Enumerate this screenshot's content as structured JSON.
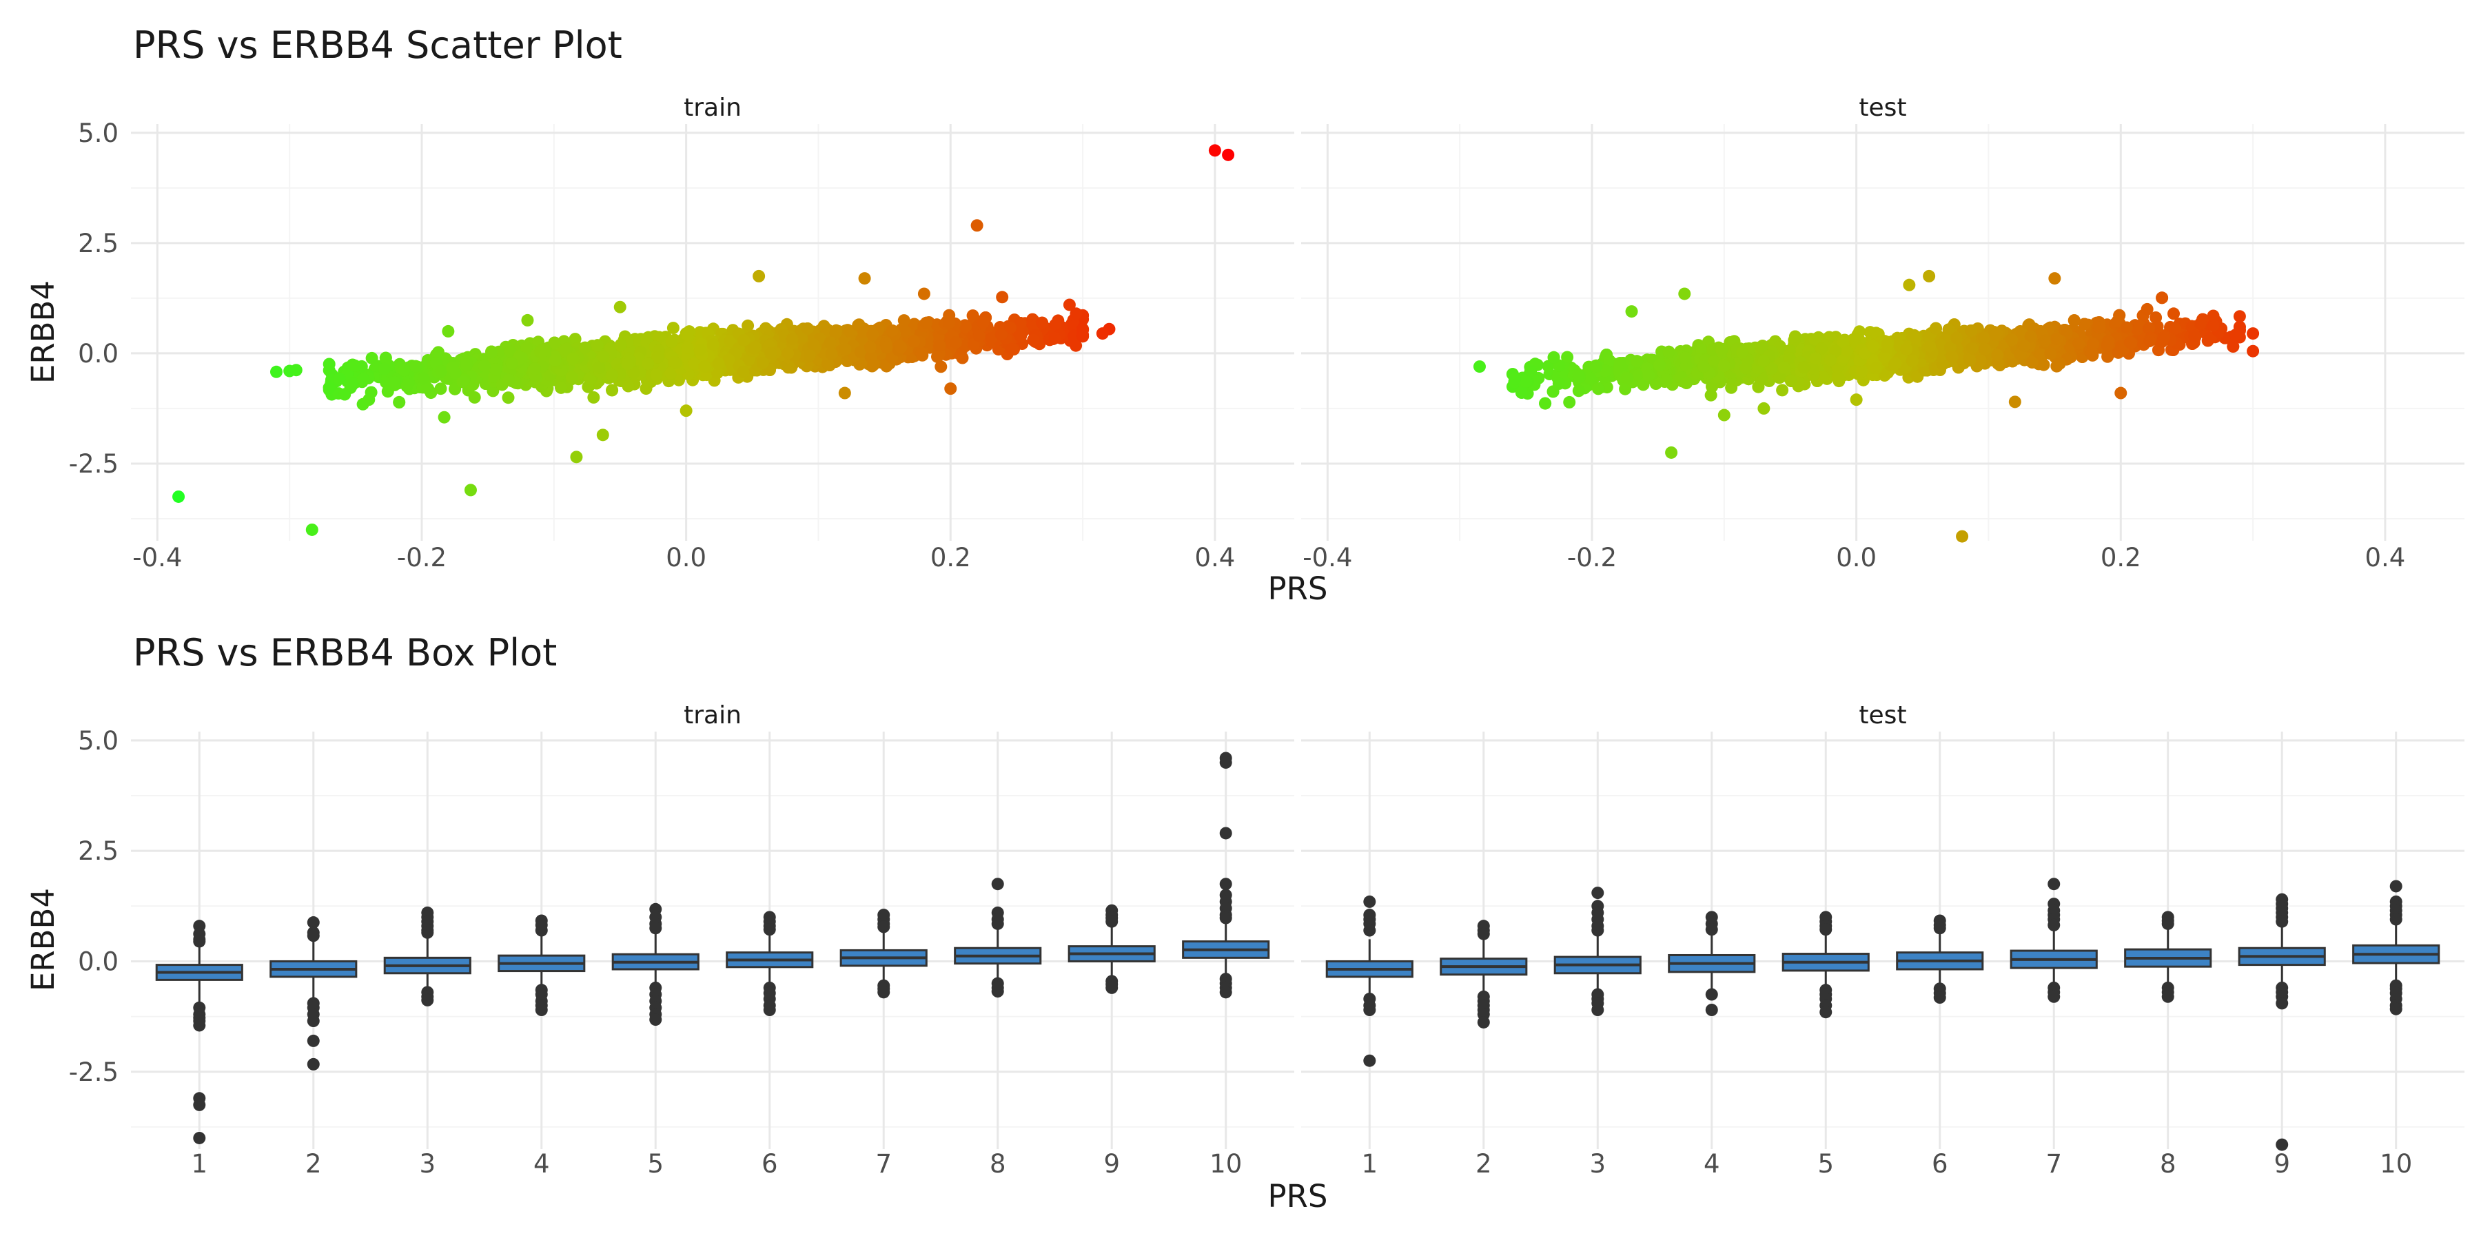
{
  "chart_data": [
    {
      "type": "scatter",
      "title": "PRS vs ERBB4 Scatter Plot",
      "xlabel": "PRS",
      "ylabel": "ERBB4",
      "facets": [
        "train",
        "test"
      ],
      "xlim": [
        -0.42,
        0.46
      ],
      "ylim": [
        -4.25,
        5.2
      ],
      "x_ticks": [
        -0.4,
        -0.2,
        0.0,
        0.2,
        0.4
      ],
      "y_ticks": [
        5.0,
        2.5,
        0.0,
        -2.5
      ],
      "x_tick_labels": [
        "-0.4",
        "-0.2",
        "0.0",
        "0.2",
        "0.4"
      ],
      "y_tick_labels": [
        "5.0",
        "2.5",
        "0.0",
        "-2.5"
      ],
      "color_scale": {
        "low": "#22ff22",
        "mid": "#b8c000",
        "high": "#ff0000",
        "mapped_to": "PRS"
      },
      "trend": {
        "slope": 2.0,
        "intercept": -0.06,
        "sd": 0.2
      },
      "train": {
        "bulk": {
          "x_range": [
            -0.27,
            0.3
          ],
          "count": 4000
        },
        "points": [
          {
            "x": 0.4,
            "y": 4.6
          },
          {
            "x": 0.41,
            "y": 4.5
          },
          {
            "x": 0.22,
            "y": 2.9
          },
          {
            "x": -0.384,
            "y": -3.25
          },
          {
            "x": -0.283,
            "y": -4.0
          },
          {
            "x": -0.163,
            "y": -3.1
          },
          {
            "x": -0.083,
            "y": -2.35
          },
          {
            "x": -0.063,
            "y": -1.85
          },
          {
            "x": -0.183,
            "y": -1.45
          },
          {
            "x": 0.055,
            "y": 1.75
          },
          {
            "x": 0.135,
            "y": 1.7
          },
          {
            "x": 0.32,
            "y": 0.55
          },
          {
            "x": 0.315,
            "y": 0.45
          },
          {
            "x": -0.3,
            "y": -0.4
          },
          {
            "x": -0.31,
            "y": -0.42
          },
          {
            "x": -0.295,
            "y": -0.38
          },
          {
            "x": -0.18,
            "y": 0.5
          },
          {
            "x": 0.29,
            "y": 1.1
          },
          {
            "x": 0.295,
            "y": 0.9
          },
          {
            "x": 0.18,
            "y": 1.35
          },
          {
            "x": -0.05,
            "y": 1.05
          },
          {
            "x": -0.12,
            "y": 0.75
          },
          {
            "x": -0.24,
            "y": -1.05
          },
          {
            "x": -0.16,
            "y": -1.0
          },
          {
            "x": -0.07,
            "y": -1.0
          },
          {
            "x": 0.0,
            "y": -1.3
          },
          {
            "x": 0.12,
            "y": -0.9
          },
          {
            "x": 0.2,
            "y": -0.8
          }
        ]
      },
      "test": {
        "bulk": {
          "x_range": [
            -0.26,
            0.29
          ],
          "count": 3300
        },
        "points": [
          {
            "x": 0.08,
            "y": -4.15
          },
          {
            "x": -0.14,
            "y": -2.25
          },
          {
            "x": -0.285,
            "y": -0.3
          },
          {
            "x": 0.3,
            "y": 0.45
          },
          {
            "x": 0.3,
            "y": 0.05
          },
          {
            "x": 0.27,
            "y": 0.85
          },
          {
            "x": 0.04,
            "y": 1.55
          },
          {
            "x": 0.055,
            "y": 1.75
          },
          {
            "x": 0.15,
            "y": 1.7
          },
          {
            "x": -0.13,
            "y": 1.35
          },
          {
            "x": -0.17,
            "y": 0.95
          },
          {
            "x": -0.21,
            "y": -0.85
          },
          {
            "x": -0.11,
            "y": -0.95
          },
          {
            "x": -0.1,
            "y": -1.4
          },
          {
            "x": -0.07,
            "y": -1.25
          },
          {
            "x": 0.0,
            "y": -1.05
          },
          {
            "x": 0.12,
            "y": -1.1
          },
          {
            "x": 0.2,
            "y": -0.9
          },
          {
            "x": 0.24,
            "y": 0.9
          },
          {
            "x": 0.22,
            "y": 1.0
          }
        ]
      }
    },
    {
      "type": "box",
      "title": "PRS vs ERBB4 Box Plot",
      "xlabel": "PRS",
      "ylabel": "ERBB4",
      "facets": [
        "train",
        "test"
      ],
      "categories": [
        "1",
        "2",
        "3",
        "4",
        "5",
        "6",
        "7",
        "8",
        "9",
        "10"
      ],
      "ylim": [
        -4.25,
        5.2
      ],
      "y_ticks": [
        5.0,
        2.5,
        0.0,
        -2.5
      ],
      "y_tick_labels": [
        "5.0",
        "2.5",
        "0.0",
        "-2.5"
      ],
      "box_fill": "#3d83c5",
      "train": [
        {
          "q1": -0.42,
          "median": -0.25,
          "q3": -0.08,
          "whisker_low": -0.92,
          "whisker_high": 0.43,
          "outliers": [
            0.8,
            0.62,
            0.5,
            0.45,
            -1.05,
            -1.2,
            -1.28,
            -1.35,
            -1.45,
            -3.1,
            -3.25,
            -4.0
          ]
        },
        {
          "q1": -0.35,
          "median": -0.18,
          "q3": 0.0,
          "whisker_low": -0.85,
          "whisker_high": 0.5,
          "outliers": [
            0.88,
            0.65,
            0.58,
            -0.95,
            -1.05,
            -1.2,
            -1.35,
            -1.8,
            -2.33
          ]
        },
        {
          "q1": -0.27,
          "median": -0.1,
          "q3": 0.08,
          "whisker_low": -0.62,
          "whisker_high": 0.58,
          "outliers": [
            1.1,
            1.0,
            0.9,
            0.8,
            0.7,
            0.65,
            -0.7,
            -0.8,
            -0.88
          ]
        },
        {
          "q1": -0.22,
          "median": -0.05,
          "q3": 0.13,
          "whisker_low": -0.55,
          "whisker_high": 0.62,
          "outliers": [
            0.92,
            0.82,
            0.7,
            -0.65,
            -0.75,
            -0.9,
            -1.0,
            -1.1
          ]
        },
        {
          "q1": -0.18,
          "median": -0.02,
          "q3": 0.16,
          "whisker_low": -0.52,
          "whisker_high": 0.65,
          "outliers": [
            1.18,
            1.0,
            0.85,
            0.75,
            -0.6,
            -0.75,
            -0.9,
            -1.05,
            -1.2,
            -1.32
          ]
        },
        {
          "q1": -0.13,
          "median": 0.03,
          "q3": 0.2,
          "whisker_low": -0.5,
          "whisker_high": 0.68,
          "outliers": [
            1.0,
            0.9,
            0.8,
            0.72,
            -0.6,
            -0.72,
            -0.85,
            -1.0,
            -1.1
          ]
        },
        {
          "q1": -0.1,
          "median": 0.08,
          "q3": 0.25,
          "whisker_low": -0.45,
          "whisker_high": 0.72,
          "outliers": [
            1.05,
            0.95,
            0.85,
            0.78,
            -0.55,
            -0.62,
            -0.7
          ]
        },
        {
          "q1": -0.05,
          "median": 0.12,
          "q3": 0.3,
          "whisker_low": -0.4,
          "whisker_high": 0.78,
          "outliers": [
            1.75,
            1.1,
            0.95,
            0.85,
            -0.5,
            -0.6,
            -0.68
          ]
        },
        {
          "q1": 0.0,
          "median": 0.17,
          "q3": 0.34,
          "whisker_low": -0.35,
          "whisker_high": 0.82,
          "outliers": [
            1.15,
            1.05,
            0.98,
            0.9,
            -0.45,
            -0.52,
            -0.6
          ]
        },
        {
          "q1": 0.08,
          "median": 0.26,
          "q3": 0.45,
          "whisker_low": -0.3,
          "whisker_high": 0.9,
          "outliers": [
            4.6,
            4.5,
            2.9,
            1.75,
            1.5,
            1.35,
            1.2,
            1.05,
            0.98,
            -0.4,
            -0.5,
            -0.6,
            -0.7
          ]
        }
      ],
      "test": [
        {
          "q1": -0.35,
          "median": -0.18,
          "q3": 0.0,
          "whisker_low": -0.8,
          "whisker_high": 0.5,
          "outliers": [
            1.35,
            1.05,
            0.95,
            0.85,
            0.7,
            -0.85,
            -1.0,
            -1.1,
            -2.25
          ]
        },
        {
          "q1": -0.3,
          "median": -0.12,
          "q3": 0.06,
          "whisker_low": -0.7,
          "whisker_high": 0.55,
          "outliers": [
            0.8,
            0.7,
            0.62,
            -0.8,
            -0.9,
            -1.0,
            -1.1,
            -1.2,
            -1.38
          ]
        },
        {
          "q1": -0.27,
          "median": -0.08,
          "q3": 0.1,
          "whisker_low": -0.65,
          "whisker_high": 0.6,
          "outliers": [
            1.55,
            1.25,
            1.1,
            0.95,
            0.8,
            0.7,
            -0.75,
            -0.85,
            -0.95,
            -1.1
          ]
        },
        {
          "q1": -0.24,
          "median": -0.05,
          "q3": 0.14,
          "whisker_low": -0.62,
          "whisker_high": 0.63,
          "outliers": [
            1.0,
            0.85,
            0.72,
            -0.75,
            -1.1
          ]
        },
        {
          "q1": -0.21,
          "median": -0.02,
          "q3": 0.17,
          "whisker_low": -0.6,
          "whisker_high": 0.65,
          "outliers": [
            1.0,
            0.9,
            0.8,
            0.72,
            -0.65,
            -0.75,
            -0.85,
            -1.0,
            -1.15
          ]
        },
        {
          "q1": -0.18,
          "median": 0.01,
          "q3": 0.2,
          "whisker_low": -0.58,
          "whisker_high": 0.68,
          "outliers": [
            0.92,
            0.82,
            0.75,
            -0.62,
            -0.72,
            -0.82
          ]
        },
        {
          "q1": -0.15,
          "median": 0.04,
          "q3": 0.24,
          "whisker_low": -0.55,
          "whisker_high": 0.72,
          "outliers": [
            1.75,
            1.3,
            1.15,
            1.05,
            0.95,
            0.82,
            -0.6,
            -0.7,
            -0.8
          ]
        },
        {
          "q1": -0.12,
          "median": 0.07,
          "q3": 0.27,
          "whisker_low": -0.52,
          "whisker_high": 0.75,
          "outliers": [
            1.0,
            0.92,
            0.85,
            -0.6,
            -0.7,
            -0.8
          ]
        },
        {
          "q1": -0.08,
          "median": 0.11,
          "q3": 0.3,
          "whisker_low": -0.5,
          "whisker_high": 0.8,
          "outliers": [
            1.4,
            1.3,
            1.2,
            1.1,
            1.0,
            0.9,
            -0.6,
            -0.7,
            -0.8,
            -0.95,
            -4.15
          ]
        },
        {
          "q1": -0.04,
          "median": 0.16,
          "q3": 0.36,
          "whisker_low": -0.45,
          "whisker_high": 0.85,
          "outliers": [
            1.7,
            1.35,
            1.25,
            1.15,
            1.05,
            0.95,
            -0.55,
            -0.62,
            -0.72,
            -0.85,
            -1.0,
            -1.08
          ]
        }
      ]
    }
  ]
}
